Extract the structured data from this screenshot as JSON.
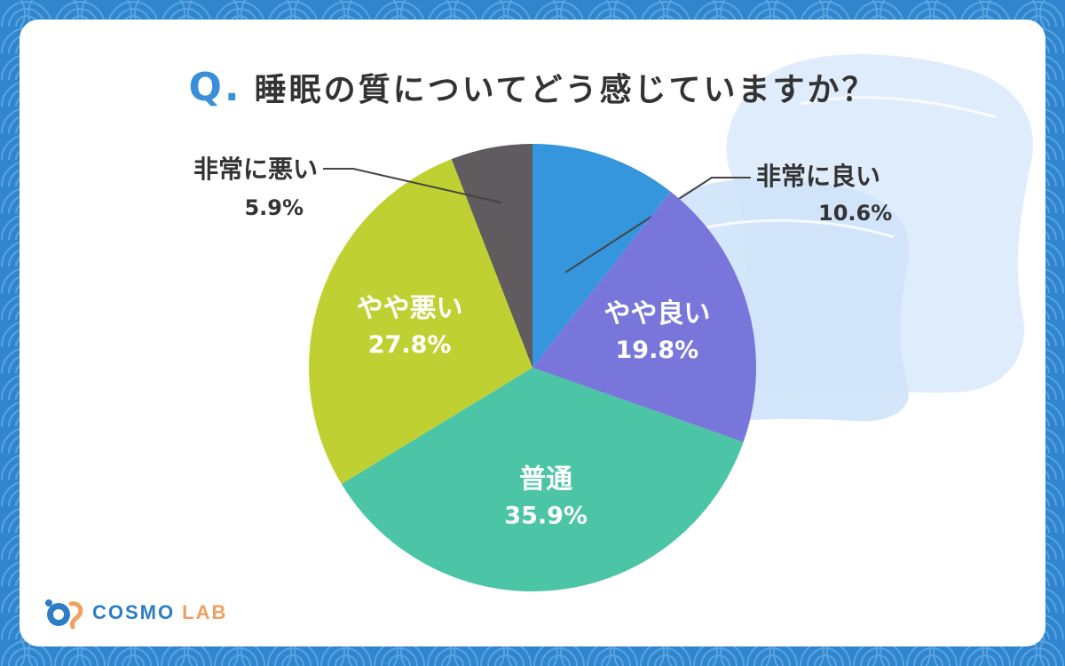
{
  "header": {
    "q_mark": "Q.",
    "question": "睡眠の質についてどう感じていますか？"
  },
  "logo": {
    "brand": "COSMO",
    "suffix": "LAB",
    "logo_icon": "cosmo-lab-logo-icon"
  },
  "colors": {
    "background": "#2f86cf",
    "card": "#ffffff",
    "accent_q": "#3a8fd9",
    "logo_primary": "#2d7dc4",
    "logo_secondary": "#f0a15e"
  },
  "decoration": {
    "pillow_icon": "pillow-illustration"
  },
  "chart_data": {
    "type": "pie",
    "title": "睡眠の質についてどう感じていますか？",
    "start": "top",
    "direction": "clockwise",
    "slices": [
      {
        "label": "非常に良い",
        "value": 10.6,
        "value_text": "10.6%",
        "color": "#3596dd",
        "label_placement": "outside"
      },
      {
        "label": "やや良い",
        "value": 19.8,
        "value_text": "19.8%",
        "color": "#7876da",
        "label_placement": "inside"
      },
      {
        "label": "普通",
        "value": 35.9,
        "value_text": "35.9%",
        "color": "#4cc4a6",
        "label_placement": "inside"
      },
      {
        "label": "やや悪い",
        "value": 27.8,
        "value_text": "27.8%",
        "color": "#bfd132",
        "label_placement": "inside"
      },
      {
        "label": "非常に悪い",
        "value": 5.9,
        "value_text": "5.9%",
        "color": "#5f5b5e",
        "label_placement": "outside"
      }
    ]
  }
}
